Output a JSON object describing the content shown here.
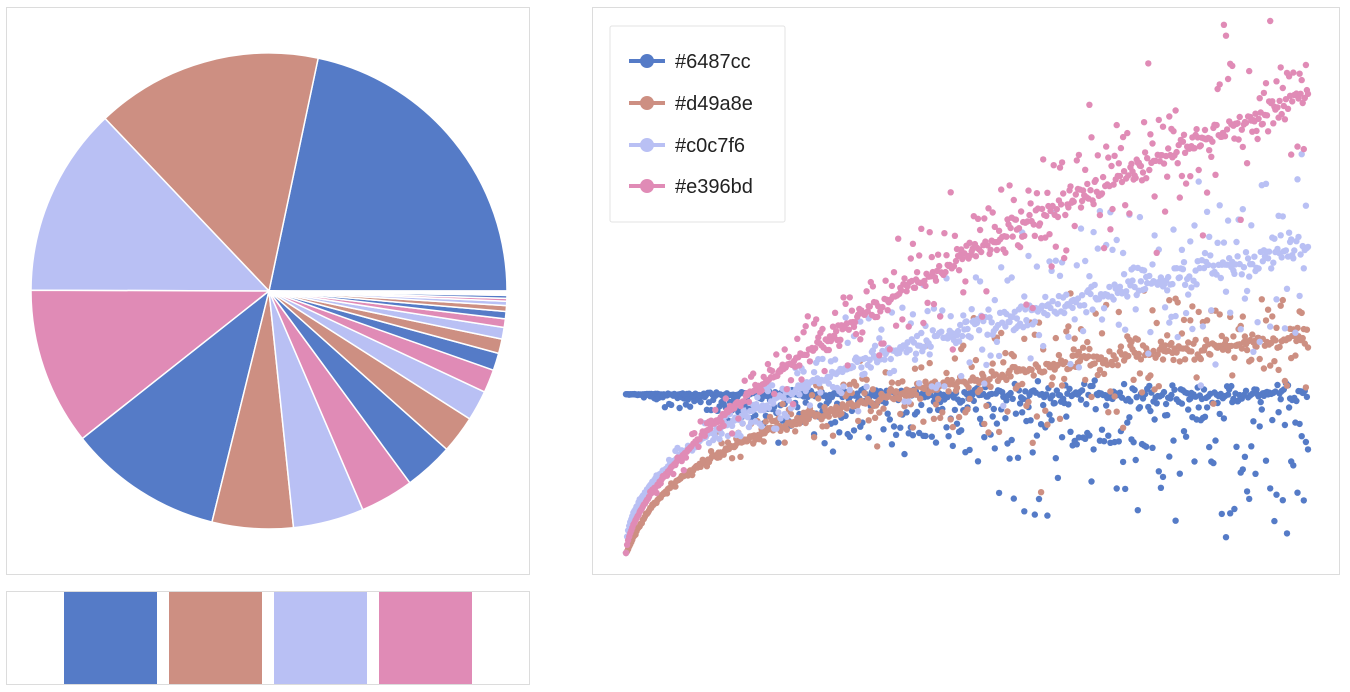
{
  "palette": [
    {
      "name": "blue",
      "hex": "#6487cc"
    },
    {
      "name": "brown",
      "hex": "#d49a8e"
    },
    {
      "name": "lavender",
      "hex": "#c0c7f6"
    },
    {
      "name": "pink",
      "hex": "#e396bd"
    }
  ],
  "chart_data": [
    {
      "type": "pie",
      "title": "",
      "start_angle_deg": 0,
      "direction": "counterclockwise",
      "colors": [
        "#557bc7",
        "#cd8f82",
        "#b9c0f4",
        "#e08bb6"
      ],
      "values": [
        22.1,
        15.7,
        13.1,
        10.9,
        10.7,
        5.6,
        4.9,
        3.7,
        3.4,
        2.6,
        2.1,
        1.6,
        1.2,
        1.0,
        0.8,
        0.6,
        0.5,
        0.4,
        0.3,
        0.2,
        0.2,
        0.1,
        0.1,
        0.1
      ]
    },
    {
      "type": "scatter",
      "title": "",
      "xlabel": "",
      "ylabel": "",
      "xlim": [
        0,
        1
      ],
      "ylim": [
        -3.6,
        8.3
      ],
      "grid": false,
      "axes_visible": false,
      "legend_position": "top-left",
      "series": [
        {
          "name": "#6487cc",
          "color": "#557bc7",
          "trend": "flat",
          "final": 0.0,
          "spread": 1.4
        },
        {
          "name": "#d49a8e",
          "color": "#cd8f82",
          "trend": "log-rise",
          "final": 1.3,
          "spread": 1.3
        },
        {
          "name": "#c0c7f6",
          "color": "#b9c0f4",
          "trend": "sqrt-rise",
          "final": 3.3,
          "spread": 1.8
        },
        {
          "name": "#e396bd",
          "color": "#e08bb6",
          "trend": "linear-rise",
          "final": 6.8,
          "spread": 1.6
        }
      ]
    }
  ]
}
